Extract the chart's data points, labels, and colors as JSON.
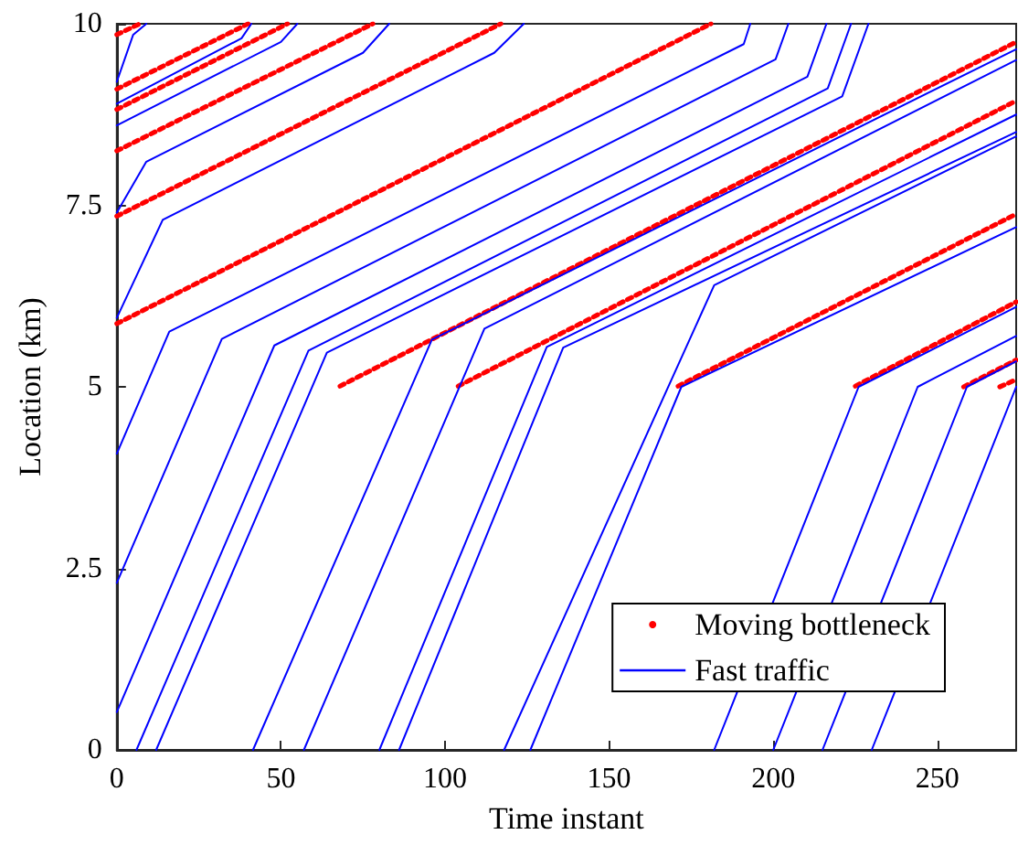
{
  "chart_data": {
    "type": "line",
    "xlabel": "Time instant",
    "ylabel": "Location (km)",
    "xlim": [
      0,
      274
    ],
    "xticks": [
      0,
      50,
      100,
      150,
      200,
      250
    ],
    "ylim": [
      0,
      10
    ],
    "yticks": [
      0,
      2.5,
      5,
      7.5,
      10
    ],
    "grid": false,
    "legend": "bottom right",
    "series": [
      {
        "name": "Moving bottleneck",
        "color": "#ff0000",
        "line_style": "dotted",
        "x": [
          0,
          7,
          null,
          0,
          40,
          null,
          0,
          52,
          null,
          0,
          78,
          null,
          0,
          117,
          null,
          0,
          181,
          null,
          68,
          274,
          null,
          104,
          274,
          null,
          171,
          274,
          null,
          225,
          274,
          null,
          258,
          274,
          null,
          269,
          274
        ],
        "values": [
          9.85,
          10,
          null,
          9.1,
          10,
          null,
          8.82,
          10,
          null,
          8.25,
          10,
          null,
          7.35,
          10,
          null,
          5.87,
          10,
          null,
          5.01,
          9.75,
          null,
          5.01,
          8.94,
          null,
          5.01,
          7.38,
          null,
          5.01,
          6.17,
          null,
          5.0,
          5.37,
          null,
          5.0,
          5.1
        ]
      },
      {
        "name": "Fast traffic",
        "color": "#0000ff",
        "line_style": "solid",
        "x": [
          0,
          5,
          9,
          null,
          0,
          38,
          41,
          null,
          0,
          50,
          55,
          null,
          0,
          9,
          75,
          83,
          null,
          0,
          14,
          115,
          124,
          null,
          0,
          16,
          191,
          193,
          null,
          0,
          32,
          200.7,
          204.6,
          null,
          0,
          48,
          210.4,
          216.2,
          null,
          6,
          58.4,
          216.6,
          223.7,
          null,
          12,
          64,
          221,
          229,
          null,
          41.5,
          96,
          274,
          null,
          57,
          112,
          274,
          null,
          80,
          131,
          274,
          null,
          86,
          136,
          274,
          null,
          118,
          182,
          274,
          null,
          126,
          172,
          274,
          null,
          182,
          226,
          274,
          null,
          200,
          244,
          274,
          null,
          215,
          259,
          274,
          null,
          230,
          274
        ],
        "values": [
          9.2,
          9.85,
          10,
          null,
          8.9,
          9.8,
          10,
          null,
          8.6,
          9.75,
          10,
          null,
          7.4,
          8.1,
          9.6,
          10,
          null,
          5.95,
          7.3,
          9.6,
          10,
          null,
          4.08,
          5.76,
          9.72,
          10,
          null,
          2.3,
          5.66,
          9.51,
          10,
          null,
          0.52,
          5.57,
          9.27,
          10,
          null,
          0,
          5.5,
          9.11,
          10,
          null,
          0,
          5.47,
          9.0,
          10,
          null,
          0,
          5.65,
          9.65,
          null,
          0,
          5.8,
          9.5,
          null,
          0,
          5.55,
          8.75,
          null,
          0,
          5.54,
          8.51,
          null,
          0,
          6.4,
          8.45,
          null,
          0,
          5.0,
          7.2,
          null,
          0,
          5.0,
          6.1,
          null,
          0,
          5.0,
          5.7,
          null,
          0,
          5.0,
          5.35,
          null,
          0,
          5.0
        ]
      }
    ]
  }
}
